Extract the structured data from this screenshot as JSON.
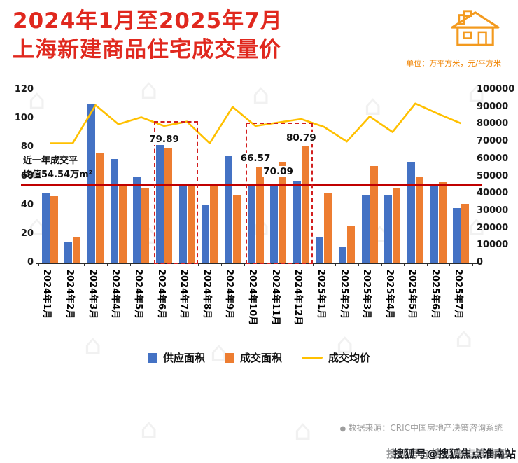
{
  "header": {
    "title_line1": "2024年1月至2025年7月",
    "title_line2": "上海新建商品住宅成交量价",
    "unit_note": "单位：万平方米，元/平方米"
  },
  "chart_data": {
    "type": "bar+line",
    "title": "2024年1月至2025年7月上海新建商品住宅成交量价",
    "categories": [
      "2024年1月",
      "2024年2月",
      "2024年3月",
      "2024年4月",
      "2024年5月",
      "2024年6月",
      "2024年7月",
      "2024年8月",
      "2024年9月",
      "2024年10月",
      "2024年11月",
      "2024年12月",
      "2025年1月",
      "2025年2月",
      "2025年3月",
      "2025年4月",
      "2025年5月",
      "2025年6月",
      "2025年7月"
    ],
    "series": [
      {
        "name": "供应面积",
        "type": "bar",
        "axis": "left",
        "color": "#4472c4",
        "values": [
          48,
          14,
          110,
          72,
          60,
          85,
          53,
          40,
          74,
          53,
          55,
          57,
          18,
          11,
          47,
          47,
          70,
          53,
          38
        ]
      },
      {
        "name": "成交面积",
        "type": "bar",
        "axis": "left",
        "color": "#ed7d31",
        "values": [
          46,
          18,
          76,
          53,
          52,
          79.89,
          54,
          53,
          47,
          66.57,
          70.09,
          80.79,
          48,
          26,
          67,
          52,
          60,
          56,
          41
        ]
      },
      {
        "name": "成交均价",
        "type": "line",
        "axis": "right",
        "color": "#ffc000",
        "values": [
          69000,
          69000,
          91000,
          80000,
          84000,
          79000,
          81500,
          69000,
          90000,
          79000,
          81000,
          83000,
          78500,
          70000,
          84500,
          75500,
          92000,
          86000,
          80500
        ]
      }
    ],
    "left_axis": {
      "min": 0,
      "max": 120,
      "step": 20,
      "ticks": [
        "120",
        "100",
        "80",
        "60",
        "40",
        "20",
        "0"
      ]
    },
    "right_axis": {
      "min": 0,
      "max": 100000,
      "step": 10000,
      "ticks": [
        "100000",
        "90000",
        "80000",
        "70000",
        "60000",
        "50000",
        "40000",
        "30000",
        "20000",
        "10000",
        "0"
      ]
    },
    "average_line": {
      "value": 54.54,
      "color": "#c00000",
      "label_line1": "近一年成交平",
      "label_line2": "均值54.54万m²"
    },
    "highlight_boxes": [
      {
        "from": 5,
        "to": 6,
        "top_value": 98
      },
      {
        "from": 9,
        "to": 11,
        "top_value": 97
      }
    ],
    "point_labels": [
      {
        "index": 5,
        "text": "79.89",
        "dy": 0
      },
      {
        "index": 9,
        "text": "66.57",
        "dy": 0
      },
      {
        "index": 10,
        "text": "70.09",
        "dy": 26
      },
      {
        "index": 11,
        "text": "80.79",
        "dy": 0
      }
    ],
    "grid": false,
    "legend_position": "bottom"
  },
  "legend": [
    {
      "label": "供应面积"
    },
    {
      "label": "成交面积"
    },
    {
      "label": "成交均价"
    }
  ],
  "footer": {
    "source": "数据来源：CRIC中国房地产决策咨询系统",
    "watermark": "搜狐号@搜狐焦点淮南站"
  }
}
